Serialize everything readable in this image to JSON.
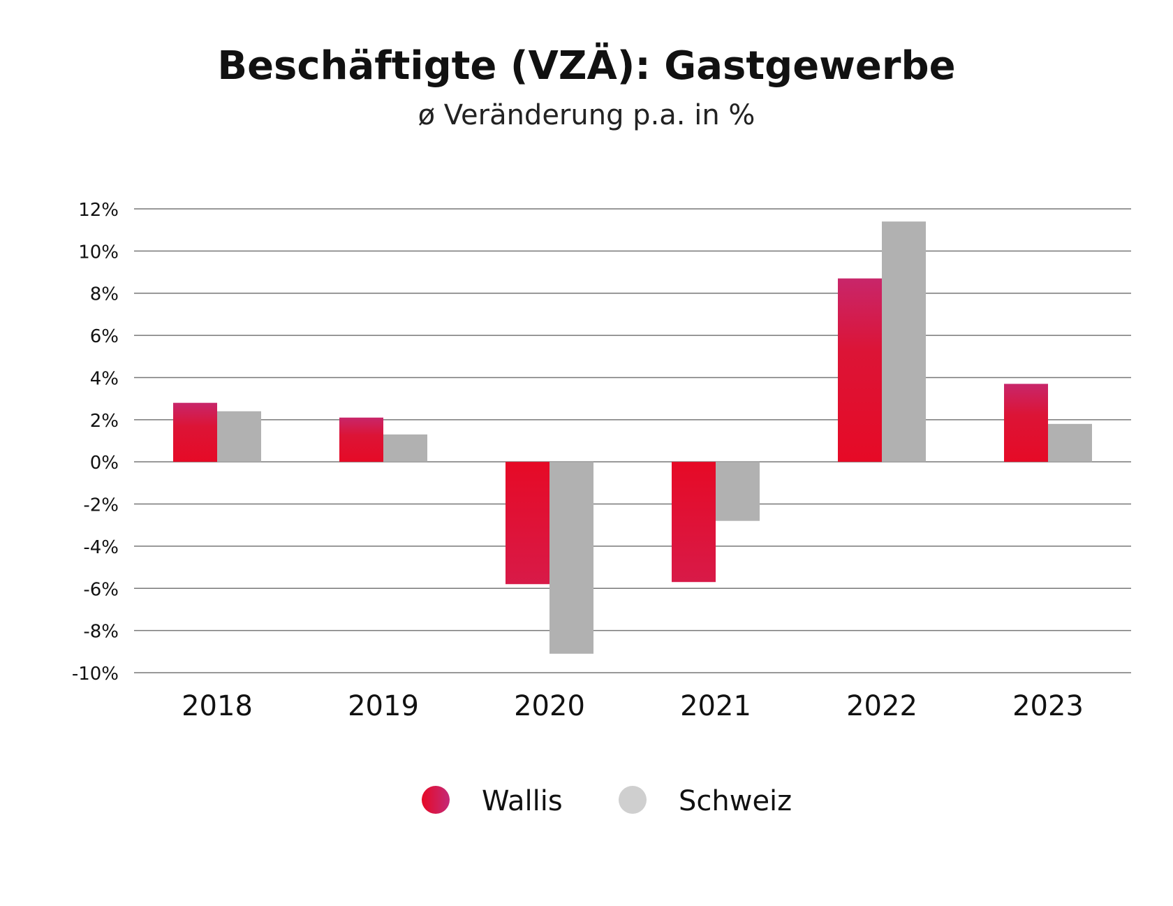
{
  "chart_data": {
    "type": "bar",
    "title": "Beschäftigte (VZÄ): Gastgewerbe",
    "subtitle": "ø Veränderung p.a. in %",
    "categories": [
      "2018",
      "2019",
      "2020",
      "2021",
      "2022",
      "2023"
    ],
    "series": [
      {
        "name": "Wallis",
        "values": [
          2.8,
          2.1,
          -5.8,
          -5.7,
          8.7,
          3.7
        ],
        "color": "#e00a27"
      },
      {
        "name": "Schweiz",
        "values": [
          2.4,
          1.3,
          -9.1,
          -2.8,
          11.4,
          1.8
        ],
        "color": "#b1b1b1"
      }
    ],
    "ylim": [
      -10,
      12
    ],
    "yticks": [
      12,
      10,
      8,
      6,
      4,
      2,
      0,
      -2,
      -4,
      -6,
      -8,
      -10
    ],
    "ytick_labels": [
      "12%",
      "10%",
      "8%",
      "6%",
      "4%",
      "2%",
      "0%",
      "-2%",
      "-4%",
      "-6%",
      "-8%",
      "-10%"
    ],
    "grid": true,
    "legend_position": "bottom-center",
    "xlabel": "",
    "ylabel": ""
  }
}
